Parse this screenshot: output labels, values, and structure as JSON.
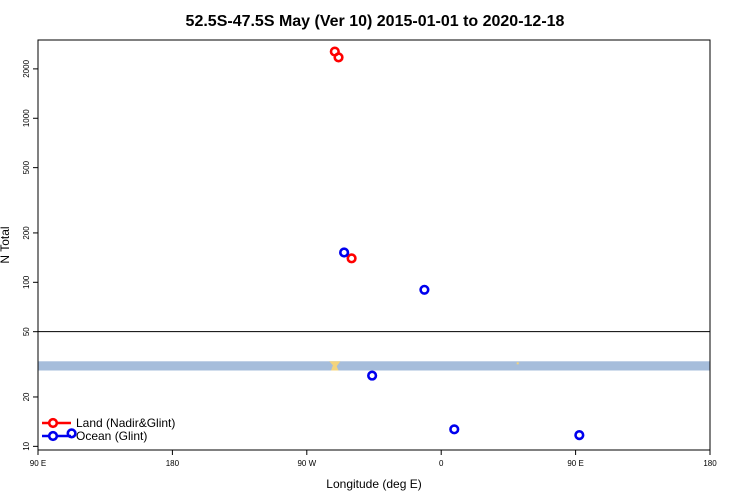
{
  "chart_data": {
    "type": "scatter",
    "title": "52.5S-47.5S May (Ver 10)   2015-01-01 to 2020-12-18",
    "xlabel": "Longitude (deg E)",
    "ylabel": "N Total",
    "y_scale": "log",
    "xlim": [
      90,
      450
    ],
    "ylim": [
      9.5,
      3000
    ],
    "x_ticks": [
      {
        "value": 90,
        "label": "90 E"
      },
      {
        "value": 162,
        "label": "180"
      },
      {
        "value": 234,
        "label": "90 W"
      },
      {
        "value": 306,
        "label": "0"
      },
      {
        "value": 378,
        "label": "90 E"
      },
      {
        "value": 450,
        "label": "180"
      }
    ],
    "y_ticks": [
      {
        "value": 10,
        "label": "10"
      },
      {
        "value": 20,
        "label": "20"
      },
      {
        "value": 50,
        "label": "50"
      },
      {
        "value": 100,
        "label": "100"
      },
      {
        "value": 200,
        "label": "200"
      },
      {
        "value": 500,
        "label": "500"
      },
      {
        "value": 1000,
        "label": "1000"
      },
      {
        "value": 2000,
        "label": "2000"
      }
    ],
    "band": {
      "y_low": 29,
      "y_high": 33,
      "color": "#a6bddb"
    },
    "separator_y": 50,
    "grid": false,
    "legend_position": "bottom-left",
    "series": [
      {
        "name": "Land (Nadir&Glint)",
        "color": "#ff0000",
        "points": [
          {
            "x": 249,
            "y": 2550
          },
          {
            "x": 251,
            "y": 2350
          },
          {
            "x": 258,
            "y": 140
          }
        ]
      },
      {
        "name": "Ocean (Glint)",
        "color": "#0000ee",
        "points": [
          {
            "x": 254,
            "y": 152
          },
          {
            "x": 297,
            "y": 90
          },
          {
            "x": 269,
            "y": 27
          },
          {
            "x": 108,
            "y": 12
          },
          {
            "x": 313,
            "y": 12.7
          },
          {
            "x": 380,
            "y": 11.7
          }
        ]
      }
    ]
  }
}
